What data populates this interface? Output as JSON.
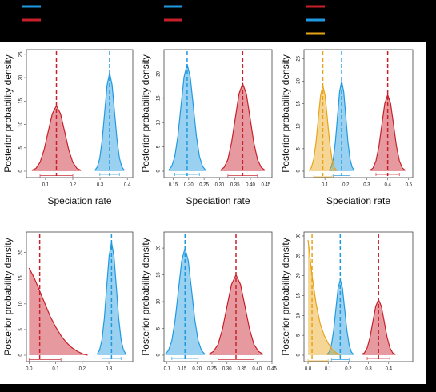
{
  "chart_data": [
    {
      "type": "density",
      "y_label": "Posterior probability density",
      "x_label": "Speciation rate",
      "xlim": [
        0.03,
        0.42
      ],
      "xticks": [
        0.1,
        0.2,
        0.3,
        0.4
      ],
      "ylim": [
        0,
        26
      ],
      "yticks": [
        0,
        5,
        10,
        15,
        20,
        25
      ],
      "series": [
        {
          "color": "#1f9ae0",
          "x": [
            0.281,
            0.29,
            0.299,
            0.308,
            0.317,
            0.326,
            0.335,
            0.344,
            0.353,
            0.362,
            0.371,
            0.38,
            0.389
          ],
          "values": [
            0.2,
            0.9,
            2.8,
            6.8,
            12.7,
            18.5,
            21,
            18.5,
            12.7,
            6.8,
            2.8,
            0.9,
            0.2
          ],
          "mean": 0.335,
          "hdi": [
            0.299,
            0.371
          ]
        },
        {
          "color": "#c8202a",
          "x": [
            0.05,
            0.065,
            0.08,
            0.095,
            0.11,
            0.125,
            0.14,
            0.155,
            0.17,
            0.185,
            0.2,
            0.215,
            0.23
          ],
          "values": [
            0.2,
            0.6,
            1.9,
            4.6,
            8.5,
            12.3,
            14,
            12.3,
            8.5,
            4.6,
            1.9,
            0.6,
            0.2
          ],
          "mean": 0.14,
          "hdi": [
            0.08,
            0.2
          ]
        }
      ]
    },
    {
      "type": "density",
      "y_label": "Posterior probability density",
      "x_label": "Speciation rate",
      "xlim": [
        0.12,
        0.47
      ],
      "xticks": [
        0.15,
        {
          "value": 0.2,
          "label": "0.20"
        },
        0.25,
        {
          "value": 0.3,
          "label": "0.30"
        },
        0.35,
        {
          "value": 0.4,
          "label": "0.40"
        },
        0.45
      ],
      "ylim": [
        0,
        25
      ],
      "yticks": [
        0,
        5,
        10,
        15,
        20
      ],
      "series": [
        {
          "color": "#1f9ae0",
          "x": [
            0.135,
            0.145,
            0.155,
            0.165,
            0.175,
            0.185,
            0.195,
            0.205,
            0.215,
            0.225,
            0.235,
            0.245,
            0.255
          ],
          "values": [
            0.2,
            1,
            3,
            7.2,
            13.4,
            19.4,
            22,
            19.4,
            13.4,
            7.2,
            3,
            1,
            0.2
          ],
          "mean": 0.195,
          "hdi": [
            0.155,
            0.235
          ]
        },
        {
          "color": "#c8202a",
          "x": [
            0.303,
            0.315,
            0.327,
            0.339,
            0.351,
            0.363,
            0.375,
            0.387,
            0.399,
            0.411,
            0.423,
            0.435,
            0.447
          ],
          "values": [
            0.2,
            0.8,
            2.4,
            5.9,
            10.9,
            15.9,
            18,
            15.9,
            10.9,
            5.9,
            2.4,
            0.8,
            0.2
          ],
          "mean": 0.375,
          "hdi": [
            0.327,
            0.423
          ]
        }
      ]
    },
    {
      "type": "density",
      "y_label": "Posterior probability density",
      "x_label": "Speciation rate",
      "xlim": [
        0,
        0.52
      ],
      "xticks": [
        0.1,
        0.2,
        0.3,
        0.4,
        0.5
      ],
      "ylim": [
        0,
        27
      ],
      "yticks": [
        0,
        5,
        10,
        15,
        20,
        25
      ],
      "series": [
        {
          "color": "#c8202a",
          "x": [
            0.316,
            0.33,
            0.344,
            0.358,
            0.372,
            0.386,
            0.4,
            0.414,
            0.428,
            0.442,
            0.456,
            0.47,
            0.484
          ],
          "values": [
            0.2,
            0.7,
            2.3,
            5.5,
            10.3,
            15,
            17,
            15,
            10.3,
            5.5,
            2.3,
            0.7,
            0.2
          ],
          "mean": 0.4,
          "hdi": [
            0.344,
            0.456
          ]
        },
        {
          "color": "#1f9ae0",
          "x": [
            0.12,
            0.13,
            0.14,
            0.15,
            0.16,
            0.17,
            0.18,
            0.19,
            0.2,
            0.21,
            0.22,
            0.23,
            0.24
          ],
          "values": [
            0.2,
            0.9,
            2.7,
            6.5,
            12.1,
            17.6,
            20,
            17.6,
            12.1,
            6.5,
            2.7,
            0.9,
            0.2
          ],
          "mean": 0.18,
          "hdi": [
            0.14,
            0.22
          ]
        },
        {
          "color": "#e8a317",
          "x": [
            0.024,
            0.035,
            0.046,
            0.057,
            0.068,
            0.079,
            0.09,
            0.101,
            0.112,
            0.123,
            0.134,
            0.145,
            0.156
          ],
          "values": [
            0.2,
            0.8,
            2.6,
            6.2,
            11.5,
            16.8,
            19,
            16.8,
            11.5,
            6.2,
            2.6,
            0.8,
            0.2
          ],
          "mean": 0.09,
          "hdi": [
            0.046,
            0.134
          ]
        }
      ]
    },
    {
      "type": "density",
      "y_label": "Posterior probability density",
      "xlim": [
        -0.01,
        0.39
      ],
      "xticks": [
        {
          "value": 0,
          "label": "0.0"
        },
        0.1,
        0.2,
        0.3
      ],
      "ylim": [
        0,
        24
      ],
      "yticks": [
        0,
        5,
        10,
        15,
        20
      ],
      "series": [
        {
          "color": "#1f9ae0",
          "x": [
            0.256,
            0.265,
            0.274,
            0.283,
            0.292,
            0.301,
            0.31,
            0.319,
            0.328,
            0.337,
            0.346,
            0.355,
            0.364
          ],
          "values": [
            0.2,
            1,
            3,
            7.2,
            13.4,
            19.4,
            22,
            19.4,
            13.4,
            7.2,
            3,
            1,
            0.2
          ],
          "mean": 0.31,
          "hdi": [
            0.274,
            0.346
          ]
        },
        {
          "color": "#c8202a",
          "x": [
            0,
            0.02,
            0.04,
            0.06,
            0.08,
            0.1,
            0.12,
            0.14,
            0.16,
            0.18,
            0.2,
            0.22
          ],
          "values": [
            17,
            15,
            12.5,
            10,
            7.5,
            5.5,
            3.8,
            2.5,
            1.5,
            0.8,
            0.3,
            0
          ],
          "mean": 0.04,
          "hdi": [
            0,
            0.12
          ]
        }
      ]
    },
    {
      "type": "density",
      "y_label": "Posterior probability density",
      "xlim": [
        0.09,
        0.45
      ],
      "xticks": [
        0.1,
        0.15,
        {
          "value": 0.2,
          "label": "0.20"
        },
        0.25,
        {
          "value": 0.3,
          "label": "0.30"
        },
        0.35,
        {
          "value": 0.4,
          "label": "0.40"
        },
        0.45
      ],
      "ylim": [
        0,
        23
      ],
      "yticks": [
        0,
        5,
        10,
        15,
        20
      ],
      "series": [
        {
          "color": "#1f9ae0",
          "x": [
            0.094,
            0.105,
            0.116,
            0.127,
            0.138,
            0.149,
            0.16,
            0.171,
            0.182,
            0.193,
            0.204,
            0.215,
            0.226
          ],
          "values": [
            0.2,
            0.9,
            2.7,
            6.5,
            12.1,
            17.6,
            20,
            17.6,
            12.1,
            6.5,
            2.7,
            0.9,
            0.2
          ],
          "mean": 0.16,
          "hdi": [
            0.116,
            0.204
          ]
        },
        {
          "color": "#c8202a",
          "x": [
            0.24,
            0.255,
            0.27,
            0.285,
            0.3,
            0.315,
            0.33,
            0.345,
            0.36,
            0.375,
            0.39,
            0.405,
            0.42
          ],
          "values": [
            0.2,
            0.7,
            2,
            4.9,
            9.1,
            13.2,
            15,
            13.2,
            9.1,
            4.9,
            2,
            0.7,
            0.2
          ],
          "mean": 0.33,
          "hdi": [
            0.27,
            0.39
          ]
        }
      ]
    },
    {
      "type": "density",
      "y_label": "Posterior probability density",
      "xlim": [
        -0.02,
        0.52
      ],
      "xticks": [
        {
          "value": 0,
          "label": "0.0"
        },
        0.1,
        0.2,
        0.3,
        0.4
      ],
      "ylim": [
        0,
        31
      ],
      "yticks": [
        0,
        5,
        10,
        15,
        20,
        25,
        30
      ],
      "series": [
        {
          "color": "#c8202a",
          "x": [
            0.266,
            0.28,
            0.294,
            0.308,
            0.322,
            0.336,
            0.35,
            0.364,
            0.378,
            0.392,
            0.406,
            0.42,
            0.434
          ],
          "values": [
            0.2,
            0.6,
            1.9,
            4.6,
            8.5,
            12.3,
            14,
            12.3,
            8.5,
            4.6,
            1.9,
            0.6,
            0.2
          ],
          "mean": 0.35,
          "hdi": [
            0.294,
            0.406
          ]
        },
        {
          "color": "#1f9ae0",
          "x": [
            0.094,
            0.105,
            0.116,
            0.127,
            0.138,
            0.149,
            0.16,
            0.171,
            0.182,
            0.193,
            0.204,
            0.215,
            0.226
          ],
          "values": [
            0.2,
            0.8,
            2.6,
            6.2,
            11.5,
            16.8,
            19,
            16.8,
            11.5,
            6.2,
            2.6,
            0.8,
            0.2
          ],
          "mean": 0.16,
          "hdi": [
            0.116,
            0.204
          ]
        },
        {
          "color": "#e8a317",
          "x": [
            0,
            0.02,
            0.04,
            0.06,
            0.08,
            0.1,
            0.12,
            0.14,
            0.16
          ],
          "values": [
            29,
            20,
            13,
            8,
            5,
            3,
            1.5,
            0.6,
            0.1
          ],
          "mean": 0.02,
          "hdi": [
            0,
            0.1
          ]
        }
      ]
    }
  ]
}
